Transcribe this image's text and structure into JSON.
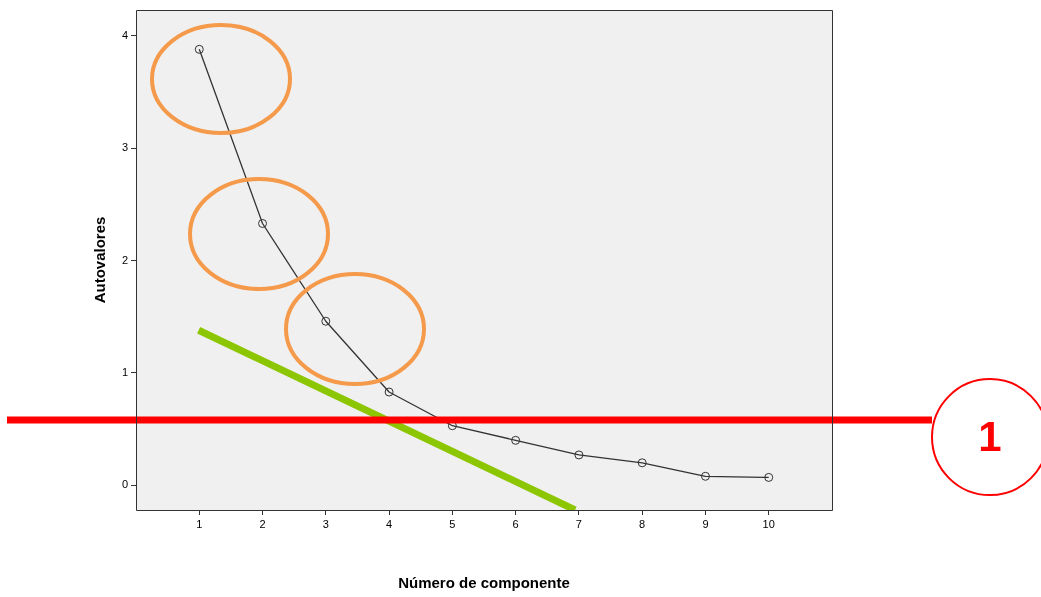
{
  "chart_data": {
    "type": "line",
    "xlabel": "Número de componente",
    "ylabel": "Autovalores",
    "x": [
      1,
      2,
      3,
      4,
      5,
      6,
      7,
      8,
      9,
      10
    ],
    "series": [
      {
        "color": "#333333",
        "values": [
          3.88,
          2.33,
          1.46,
          0.83,
          0.53,
          0.4,
          0.27,
          0.2,
          0.08,
          0.07
        ]
      },
      {
        "type": "line",
        "color": "#8cc600",
        "x": [
          0.99,
          6.94
        ],
        "values": [
          1.38,
          -0.22
        ],
        "marker": "none"
      }
    ],
    "marker": "circle",
    "line_style": "solid",
    "grid": false,
    "xlim": [
      0,
      11
    ],
    "xticks": [
      1,
      2,
      3,
      4,
      5,
      6,
      7,
      8,
      9,
      10
    ],
    "ylim": [
      -0.22,
      4.23
    ],
    "yticks": [
      0,
      1,
      2,
      3,
      4
    ],
    "ref_lines": [
      {
        "axis": "y",
        "value": 0.58,
        "label": "1",
        "color": "#ff0000"
      }
    ]
  }
}
